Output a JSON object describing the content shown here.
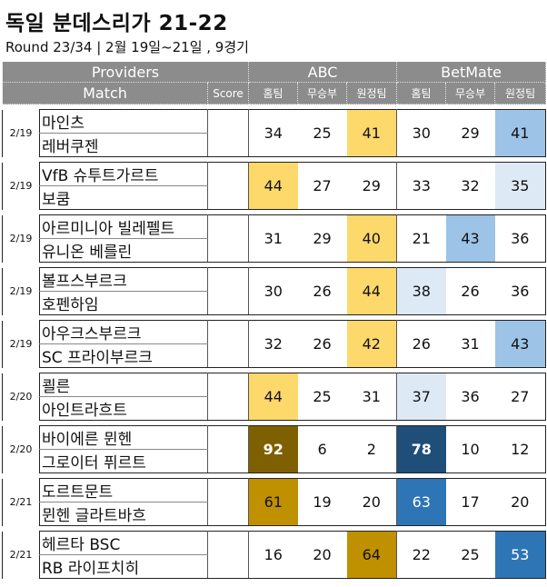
{
  "title": "독일 분데스리가 21-22",
  "subtitle": "Round 23/34 | 2월 19일~21일 , 9경기",
  "headers": {
    "providers": "Providers",
    "match": "Match",
    "score": "Score",
    "abc": "ABC",
    "betmate": "BetMate",
    "home": "홈팀",
    "draw": "무승부",
    "away": "원정팀"
  },
  "colors": {
    "header_gray": "#8c8c8c",
    "abc_light": "#fdd86b",
    "abc_mid": "#bf9000",
    "abc_dark": "#7f6000",
    "bm_pale": "#dde9f5",
    "bm_light": "#9dc3e6",
    "bm_mid": "#2e75b6",
    "bm_dark": "#1f4e79"
  },
  "matches": [
    {
      "date": "2/19",
      "home": "마인츠",
      "away": "레버쿠젠",
      "abc": [
        34,
        25,
        41
      ],
      "bm": [
        30,
        29,
        41
      ],
      "abc_hl": [
        null,
        null,
        "light"
      ],
      "bm_hl": [
        null,
        null,
        "light"
      ]
    },
    {
      "date": "2/19",
      "home": "VfB 슈투트가르트",
      "away": "보쿰",
      "abc": [
        44,
        27,
        29
      ],
      "bm": [
        33,
        32,
        35
      ],
      "abc_hl": [
        "light",
        null,
        null
      ],
      "bm_hl": [
        null,
        null,
        "pale"
      ]
    },
    {
      "date": "2/19",
      "home": "아르미니아 빌레펠트",
      "away": "유니온 베를린",
      "abc": [
        31,
        29,
        40
      ],
      "bm": [
        21,
        43,
        36
      ],
      "abc_hl": [
        null,
        null,
        "light"
      ],
      "bm_hl": [
        null,
        "light",
        null
      ]
    },
    {
      "date": "2/19",
      "home": "볼프스부르크",
      "away": "호펜하임",
      "abc": [
        30,
        26,
        44
      ],
      "bm": [
        38,
        26,
        36
      ],
      "abc_hl": [
        null,
        null,
        "light"
      ],
      "bm_hl": [
        "pale",
        null,
        null
      ]
    },
    {
      "date": "2/19",
      "home": "아우크스부르크",
      "away": "SC 프라이부르크",
      "abc": [
        32,
        26,
        42
      ],
      "bm": [
        26,
        31,
        43
      ],
      "abc_hl": [
        null,
        null,
        "light"
      ],
      "bm_hl": [
        null,
        null,
        "light"
      ]
    },
    {
      "date": "2/20",
      "home": "쾰른",
      "away": "아인트라흐트",
      "abc": [
        44,
        25,
        31
      ],
      "bm": [
        37,
        36,
        27
      ],
      "abc_hl": [
        "light",
        null,
        null
      ],
      "bm_hl": [
        "pale",
        null,
        null
      ]
    },
    {
      "date": "2/20",
      "home": "바이에른 뮌헨",
      "away": "그로이터 퓌르트",
      "abc": [
        92,
        6,
        2
      ],
      "bm": [
        78,
        10,
        12
      ],
      "abc_hl": [
        "dark",
        null,
        null
      ],
      "bm_hl": [
        "dark",
        null,
        null
      ]
    },
    {
      "date": "2/21",
      "home": "도르트문트",
      "away": "뮌헨 글라트바흐",
      "abc": [
        61,
        19,
        20
      ],
      "bm": [
        63,
        17,
        20
      ],
      "abc_hl": [
        "mid",
        null,
        null
      ],
      "bm_hl": [
        "mid",
        null,
        null
      ]
    },
    {
      "date": "2/21",
      "home": "헤르타 BSC",
      "away": "RB 라이프치히",
      "abc": [
        16,
        20,
        64
      ],
      "bm": [
        22,
        25,
        53
      ],
      "abc_hl": [
        null,
        null,
        "mid"
      ],
      "bm_hl": [
        null,
        null,
        "mid"
      ]
    }
  ]
}
